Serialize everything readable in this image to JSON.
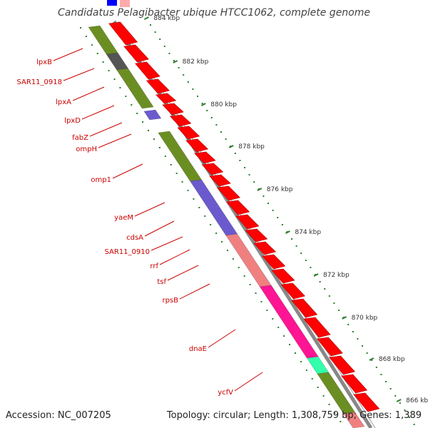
{
  "title": "Candidatus Pelagibacter ubique HTCC1062, complete genome",
  "footer": {
    "accession": "Accession: NC_007205",
    "summary": "Topology: circular; Length: 1,308,759 bp; Genes: 1,389"
  },
  "scale": {
    "labels": [
      "884 kbp",
      "882 kbp",
      "880 kbp",
      "878 kbp",
      "876 kbp",
      "874 kbp",
      "872 kbp",
      "870 kbp",
      "868 kbp",
      "866 kbp"
    ]
  },
  "genes": [
    {
      "name": "lpxB"
    },
    {
      "name": "SAR11_0918"
    },
    {
      "name": "lpxA"
    },
    {
      "name": "lpxD"
    },
    {
      "name": "fabZ"
    },
    {
      "name": "ompH"
    },
    {
      "name": "omp1"
    },
    {
      "name": "yaeM"
    },
    {
      "name": "cdsA"
    },
    {
      "name": "SAR11_0910"
    },
    {
      "name": "rrf"
    },
    {
      "name": "tsf"
    },
    {
      "name": "rpsB"
    },
    {
      "name": "dnaE"
    },
    {
      "name": "ycfV"
    }
  ],
  "colors": {
    "cds_track": "#ff0000",
    "backbone": "#999999",
    "tick": "#2e7d2e",
    "label": "#cc0000",
    "olive": "#6b8e23",
    "gray": "#555555",
    "purple": "#6a5acd",
    "salmon": "#f08080",
    "magenta": "#ff1493",
    "aqua": "#33ffaa",
    "blue": "#0000ff",
    "pink": "#ffaaaa"
  }
}
